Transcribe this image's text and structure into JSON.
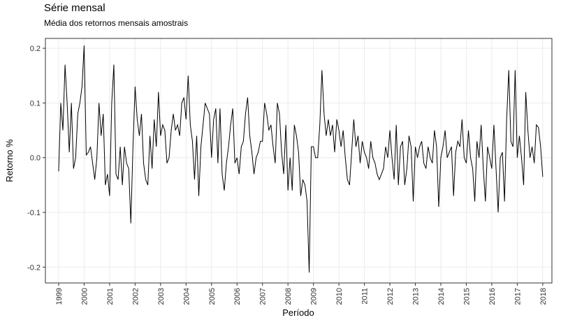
{
  "chart_data": {
    "type": "line",
    "title": "Série mensal",
    "subtitle": "Média dos retornos mensais amostrais",
    "x_label": "Período",
    "y_label": "Retorno %",
    "color": "#000000",
    "grid": true,
    "xlim": [
      1998.48,
      2018.36
    ],
    "ylim": [
      -0.229,
      0.218
    ],
    "xticks": [
      1999,
      2000,
      2001,
      2002,
      2003,
      2004,
      2005,
      2006,
      2007,
      2008,
      2009,
      2010,
      2011,
      2012,
      2013,
      2014,
      2015,
      2016,
      2017,
      2018
    ],
    "yticks": [
      -0.2,
      -0.1,
      {
        "value": 0,
        "label": "0.0"
      },
      0.1,
      0.2
    ],
    "x": [
      1999,
      1999.083,
      1999.167,
      1999.25,
      1999.333,
      1999.417,
      1999.5,
      1999.583,
      1999.667,
      1999.75,
      1999.833,
      1999.917,
      2000,
      2000.083,
      2000.167,
      2000.25,
      2000.333,
      2000.417,
      2000.5,
      2000.583,
      2000.667,
      2000.75,
      2000.833,
      2000.917,
      2001,
      2001.083,
      2001.167,
      2001.25,
      2001.333,
      2001.417,
      2001.5,
      2001.583,
      2001.667,
      2001.75,
      2001.833,
      2001.917,
      2002,
      2002.083,
      2002.167,
      2002.25,
      2002.333,
      2002.417,
      2002.5,
      2002.583,
      2002.667,
      2002.75,
      2002.833,
      2002.917,
      2003,
      2003.083,
      2003.167,
      2003.25,
      2003.333,
      2003.417,
      2003.5,
      2003.583,
      2003.667,
      2003.75,
      2003.833,
      2003.917,
      2004,
      2004.083,
      2004.167,
      2004.25,
      2004.333,
      2004.417,
      2004.5,
      2004.583,
      2004.667,
      2004.75,
      2004.833,
      2004.917,
      2005,
      2005.083,
      2005.167,
      2005.25,
      2005.333,
      2005.417,
      2005.5,
      2005.583,
      2005.667,
      2005.75,
      2005.833,
      2005.917,
      2006,
      2006.083,
      2006.167,
      2006.25,
      2006.333,
      2006.417,
      2006.5,
      2006.583,
      2006.667,
      2006.75,
      2006.833,
      2006.917,
      2007,
      2007.083,
      2007.167,
      2007.25,
      2007.333,
      2007.417,
      2007.5,
      2007.583,
      2007.667,
      2007.75,
      2007.833,
      2007.917,
      2008,
      2008.083,
      2008.167,
      2008.25,
      2008.333,
      2008.417,
      2008.5,
      2008.583,
      2008.667,
      2008.75,
      2008.833,
      2008.917,
      2009,
      2009.083,
      2009.167,
      2009.25,
      2009.333,
      2009.417,
      2009.5,
      2009.583,
      2009.667,
      2009.75,
      2009.833,
      2009.917,
      2010,
      2010.083,
      2010.167,
      2010.25,
      2010.333,
      2010.417,
      2010.5,
      2010.583,
      2010.667,
      2010.75,
      2010.833,
      2010.917,
      2011,
      2011.083,
      2011.167,
      2011.25,
      2011.333,
      2011.417,
      2011.5,
      2011.583,
      2011.667,
      2011.75,
      2011.833,
      2011.917,
      2012,
      2012.083,
      2012.167,
      2012.25,
      2012.333,
      2012.417,
      2012.5,
      2012.583,
      2012.667,
      2012.75,
      2012.833,
      2012.917,
      2013,
      2013.083,
      2013.167,
      2013.25,
      2013.333,
      2013.417,
      2013.5,
      2013.583,
      2013.667,
      2013.75,
      2013.833,
      2013.917,
      2014,
      2014.083,
      2014.167,
      2014.25,
      2014.333,
      2014.417,
      2014.5,
      2014.583,
      2014.667,
      2014.75,
      2014.833,
      2014.917,
      2015,
      2015.083,
      2015.167,
      2015.25,
      2015.333,
      2015.417,
      2015.5,
      2015.583,
      2015.667,
      2015.75,
      2015.833,
      2015.917,
      2016,
      2016.083,
      2016.167,
      2016.25,
      2016.333,
      2016.417,
      2016.5,
      2016.583,
      2016.667,
      2016.75,
      2016.833,
      2016.917,
      2017,
      2017.083,
      2017.167,
      2017.25,
      2017.333,
      2017.417,
      2017.5,
      2017.583,
      2017.667,
      2017.75,
      2017.833,
      2017.917,
      2018
    ],
    "values": [
      -0.025,
      0.1,
      0.05,
      0.17,
      0.1,
      0.01,
      0.1,
      -0.02,
      0.0,
      0.08,
      0.1,
      0.13,
      0.205,
      0.005,
      0.01,
      0.02,
      -0.01,
      -0.04,
      0.0,
      0.1,
      0.04,
      0.08,
      -0.05,
      -0.03,
      -0.07,
      0.1,
      0.17,
      -0.03,
      -0.04,
      0.02,
      -0.05,
      0.02,
      -0.01,
      -0.02,
      -0.12,
      0.02,
      0.13,
      0.07,
      0.04,
      0.08,
      -0.01,
      -0.04,
      -0.05,
      0.04,
      -0.02,
      0.07,
      0.02,
      0.12,
      0.04,
      0.06,
      0.05,
      -0.01,
      0.0,
      0.05,
      0.08,
      0.05,
      0.06,
      0.04,
      0.1,
      0.11,
      0.07,
      0.15,
      0.06,
      0.03,
      -0.04,
      0.04,
      -0.07,
      0.02,
      0.06,
      0.1,
      0.09,
      0.08,
      0.0,
      0.07,
      0.09,
      -0.01,
      0.09,
      -0.03,
      -0.06,
      -0.01,
      0.02,
      0.06,
      0.09,
      -0.01,
      0.0,
      -0.03,
      0.02,
      0.03,
      0.08,
      0.11,
      0.04,
      0.01,
      -0.03,
      0.0,
      0.01,
      0.03,
      0.03,
      0.1,
      0.08,
      0.05,
      0.06,
      0.02,
      -0.01,
      0.1,
      0.08,
      0.01,
      -0.03,
      0.06,
      -0.06,
      0.0,
      -0.06,
      0.06,
      0.04,
      0.01,
      -0.07,
      -0.04,
      -0.05,
      -0.08,
      -0.21,
      0.02,
      0.02,
      0.0,
      0.0,
      0.06,
      0.16,
      0.08,
      0.04,
      0.07,
      0.04,
      0.06,
      0.01,
      0.07,
      0.05,
      0.02,
      0.05,
      0.0,
      -0.04,
      -0.05,
      0.01,
      0.07,
      0.02,
      0.04,
      -0.01,
      0.03,
      0.01,
      0.0,
      -0.02,
      0.03,
      0.0,
      -0.01,
      -0.03,
      -0.04,
      -0.03,
      -0.02,
      0.02,
      0.0,
      0.05,
      0.0,
      -0.04,
      0.06,
      -0.05,
      0.02,
      0.03,
      -0.05,
      -0.02,
      0.04,
      0.02,
      -0.08,
      0.02,
      0.0,
      0.02,
      0.03,
      -0.01,
      -0.02,
      0.02,
      0.0,
      -0.01,
      0.05,
      0.02,
      -0.09,
      0.0,
      0.02,
      0.05,
      0.0,
      0.01,
      0.02,
      -0.07,
      0.01,
      0.03,
      0.02,
      0.07,
      0.0,
      -0.01,
      0.05,
      0.0,
      -0.02,
      -0.08,
      0.03,
      0.0,
      0.06,
      -0.02,
      -0.08,
      0.02,
      0.0,
      -0.02,
      0.06,
      -0.02,
      -0.1,
      0.0,
      0.01,
      -0.08,
      0.07,
      0.16,
      0.03,
      0.02,
      0.16,
      0.0,
      0.04,
      0.0,
      -0.05,
      0.12,
      0.05,
      0.0,
      0.02,
      -0.01,
      0.06,
      0.055,
      0.02,
      -0.035
    ]
  }
}
